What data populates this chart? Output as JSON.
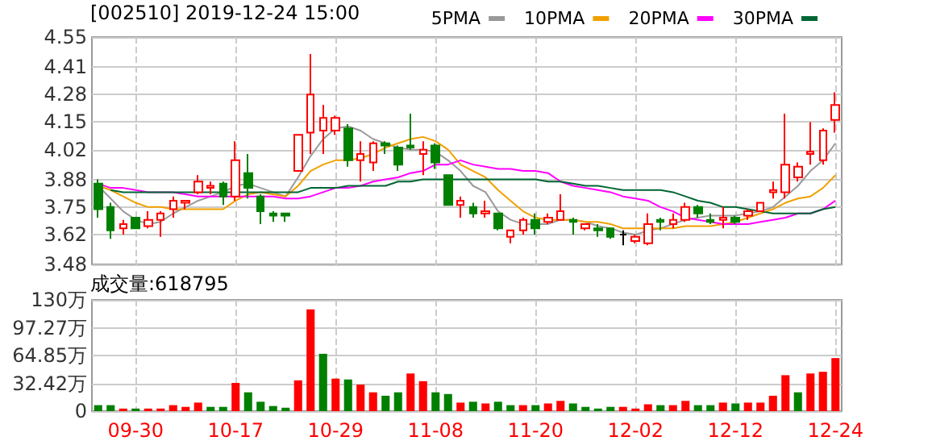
{
  "chart_data": [
    {
      "type": "candlestick",
      "title": "[002510] 2019-12-24 15:00",
      "categories": [
        null,
        null,
        null,
        null,
        null,
        null,
        null,
        null,
        null,
        null,
        null,
        null,
        null,
        null,
        null,
        null,
        null,
        null,
        null,
        null,
        null,
        null,
        null,
        null,
        null,
        null,
        null,
        null,
        null,
        null,
        null,
        null,
        null,
        null,
        null,
        null,
        null,
        null,
        null,
        null,
        null,
        null,
        null,
        null,
        null,
        null,
        null,
        null,
        null,
        null,
        null,
        null,
        null,
        null,
        null,
        null,
        null,
        null,
        null,
        null
      ],
      "series": [
        {
          "type": "candlestick",
          "ohlc": [
            [
              3.86,
              3.88,
              3.7,
              3.74
            ],
            [
              3.75,
              3.77,
              3.6,
              3.64
            ],
            [
              3.65,
              3.69,
              3.62,
              3.67
            ],
            [
              3.7,
              3.7,
              3.65,
              3.65
            ],
            [
              3.66,
              3.73,
              3.65,
              3.69
            ],
            [
              3.69,
              3.73,
              3.61,
              3.72
            ],
            [
              3.74,
              3.8,
              3.7,
              3.78
            ],
            [
              3.77,
              3.78,
              3.74,
              3.78
            ],
            [
              3.82,
              3.9,
              3.81,
              3.87
            ],
            [
              3.84,
              3.87,
              3.81,
              3.85
            ],
            [
              3.86,
              3.87,
              3.76,
              3.8
            ],
            [
              3.8,
              4.06,
              3.78,
              3.97
            ],
            [
              3.91,
              4.0,
              3.79,
              3.84
            ],
            [
              3.8,
              3.81,
              3.67,
              3.73
            ],
            [
              3.72,
              3.73,
              3.68,
              3.71
            ],
            [
              3.72,
              3.72,
              3.68,
              3.71
            ],
            [
              3.92,
              4.09,
              3.92,
              4.09
            ],
            [
              4.1,
              4.47,
              4.0,
              4.28
            ],
            [
              4.11,
              4.23,
              4.0,
              4.17
            ],
            [
              4.11,
              4.18,
              4.09,
              4.17
            ],
            [
              4.12,
              4.14,
              3.94,
              3.97
            ],
            [
              3.97,
              4.06,
              3.87,
              4.0
            ],
            [
              3.96,
              4.06,
              3.92,
              4.05
            ],
            [
              4.05,
              4.06,
              4.0,
              4.04
            ],
            [
              4.03,
              4.04,
              3.92,
              3.95
            ],
            [
              4.04,
              4.19,
              4.02,
              4.03
            ],
            [
              4.0,
              4.06,
              3.9,
              4.02
            ],
            [
              4.04,
              4.05,
              3.93,
              3.96
            ],
            [
              3.9,
              3.9,
              3.76,
              3.76
            ],
            [
              3.76,
              3.8,
              3.7,
              3.78
            ],
            [
              3.75,
              3.77,
              3.7,
              3.72
            ],
            [
              3.72,
              3.78,
              3.7,
              3.73
            ],
            [
              3.72,
              3.72,
              3.64,
              3.65
            ],
            [
              3.61,
              3.64,
              3.58,
              3.64
            ],
            [
              3.64,
              3.7,
              3.62,
              3.69
            ],
            [
              3.69,
              3.72,
              3.62,
              3.65
            ],
            [
              3.68,
              3.72,
              3.67,
              3.7
            ],
            [
              3.69,
              3.81,
              3.69,
              3.73
            ],
            [
              3.69,
              3.7,
              3.62,
              3.68
            ],
            [
              3.65,
              3.67,
              3.64,
              3.67
            ],
            [
              3.65,
              3.67,
              3.61,
              3.64
            ],
            [
              3.65,
              3.65,
              3.6,
              3.61
            ],
            [
              3.62,
              3.64,
              3.57,
              3.62
            ],
            [
              3.59,
              3.62,
              3.58,
              3.61
            ],
            [
              3.58,
              3.72,
              3.57,
              3.67
            ],
            [
              3.69,
              3.7,
              3.64,
              3.68
            ],
            [
              3.67,
              3.72,
              3.65,
              3.69
            ],
            [
              3.69,
              3.77,
              3.68,
              3.75
            ],
            [
              3.75,
              3.76,
              3.7,
              3.72
            ],
            [
              3.69,
              3.72,
              3.67,
              3.68
            ],
            [
              3.69,
              3.75,
              3.65,
              3.7
            ],
            [
              3.7,
              3.71,
              3.67,
              3.68
            ],
            [
              3.71,
              3.74,
              3.69,
              3.73
            ],
            [
              3.73,
              3.77,
              3.73,
              3.77
            ],
            [
              3.82,
              3.87,
              3.79,
              3.83
            ],
            [
              3.82,
              4.19,
              3.79,
              3.95
            ],
            [
              3.89,
              3.96,
              3.87,
              3.94
            ],
            [
              4.0,
              4.15,
              3.95,
              4.01
            ],
            [
              3.97,
              4.12,
              3.95,
              4.11
            ],
            [
              4.16,
              4.29,
              4.1,
              4.23
            ]
          ],
          "colors": [
            "#008000",
            "#008000",
            "#ff0000",
            "#008000",
            "#ff0000",
            "#ff0000",
            "#ff0000",
            "#ff0000",
            "#ff0000",
            "#ff0000",
            "#008000",
            "#ff0000",
            "#008000",
            "#008000",
            "#008000",
            "#008000",
            "#ff0000",
            "#ff0000",
            "#ff0000",
            "#ff0000",
            "#008000",
            "#ff0000",
            "#ff0000",
            "#008000",
            "#008000",
            "#008000",
            "#ff0000",
            "#008000",
            "#008000",
            "#ff0000",
            "#008000",
            "#ff0000",
            "#008000",
            "#ff0000",
            "#ff0000",
            "#008000",
            "#ff0000",
            "#ff0000",
            "#008000",
            "#ff0000",
            "#008000",
            "#008000",
            "#000000",
            "#ff0000",
            "#ff0000",
            "#008000",
            "#ff0000",
            "#ff0000",
            "#008000",
            "#008000",
            "#ff0000",
            "#008000",
            "#ff0000",
            "#ff0000",
            "#ff0000",
            "#ff0000",
            "#ff0000",
            "#ff0000",
            "#ff0000",
            "#ff0000"
          ]
        },
        {
          "type": "line",
          "name": "5PMA",
          "color": "#999999",
          "values": [
            3.85,
            3.79,
            3.73,
            3.69,
            3.67,
            3.68,
            3.72,
            3.75,
            3.78,
            3.8,
            3.82,
            3.85,
            3.86,
            3.84,
            3.82,
            3.8,
            3.89,
            3.99,
            4.07,
            4.12,
            4.13,
            4.11,
            4.07,
            4.05,
            4.03,
            4.02,
            4.02,
            4.01,
            3.97,
            3.92,
            3.85,
            3.82,
            3.73,
            3.69,
            3.67,
            3.67,
            3.67,
            3.69,
            3.69,
            3.68,
            3.66,
            3.65,
            3.63,
            3.62,
            3.64,
            3.65,
            3.67,
            3.69,
            3.7,
            3.71,
            3.71,
            3.71,
            3.72,
            3.73,
            3.75,
            3.8,
            3.85,
            3.92,
            3.97,
            4.05
          ]
        },
        {
          "type": "line",
          "name": "10PMA",
          "color": "#f0a000",
          "values": [
            3.85,
            3.83,
            3.8,
            3.77,
            3.75,
            3.75,
            3.74,
            3.74,
            3.74,
            3.74,
            3.74,
            3.78,
            3.81,
            3.82,
            3.81,
            3.8,
            3.85,
            3.92,
            3.95,
            3.97,
            3.97,
            3.98,
            4.0,
            4.03,
            4.05,
            4.07,
            4.08,
            4.06,
            4.02,
            3.95,
            3.92,
            3.89,
            3.83,
            3.78,
            3.73,
            3.7,
            3.69,
            3.69,
            3.69,
            3.68,
            3.68,
            3.67,
            3.65,
            3.65,
            3.65,
            3.65,
            3.65,
            3.66,
            3.66,
            3.66,
            3.67,
            3.68,
            3.7,
            3.72,
            3.74,
            3.77,
            3.79,
            3.8,
            3.84,
            3.9
          ]
        },
        {
          "type": "line",
          "name": "20PMA",
          "color": "#ff00ff",
          "values": [
            3.86,
            3.84,
            3.84,
            3.83,
            3.82,
            3.82,
            3.82,
            3.81,
            3.8,
            3.8,
            3.8,
            3.8,
            3.8,
            3.8,
            3.8,
            3.79,
            3.79,
            3.8,
            3.82,
            3.84,
            3.84,
            3.85,
            3.87,
            3.88,
            3.89,
            3.91,
            3.92,
            3.95,
            3.95,
            3.97,
            3.95,
            3.94,
            3.93,
            3.93,
            3.92,
            3.92,
            3.91,
            3.87,
            3.85,
            3.84,
            3.83,
            3.82,
            3.8,
            3.79,
            3.78,
            3.75,
            3.73,
            3.7,
            3.69,
            3.68,
            3.67,
            3.67,
            3.67,
            3.68,
            3.69,
            3.7,
            3.72,
            3.72,
            3.74,
            3.78
          ]
        },
        {
          "type": "line",
          "name": "30PMA",
          "color": "#006633",
          "values": [
            null,
            3.83,
            3.82,
            3.82,
            3.82,
            3.82,
            3.82,
            3.82,
            3.82,
            3.82,
            3.82,
            3.82,
            3.82,
            3.82,
            3.82,
            3.82,
            3.82,
            3.84,
            3.84,
            3.84,
            3.85,
            3.85,
            3.85,
            3.85,
            3.87,
            3.87,
            3.88,
            3.88,
            3.88,
            3.88,
            3.88,
            3.88,
            3.88,
            3.88,
            3.88,
            3.88,
            3.87,
            3.87,
            3.86,
            3.85,
            3.85,
            3.84,
            3.83,
            3.83,
            3.83,
            3.83,
            3.82,
            3.8,
            3.78,
            3.77,
            3.75,
            3.75,
            3.74,
            3.73,
            3.72,
            3.72,
            3.72,
            3.72,
            3.74,
            3.75
          ]
        }
      ],
      "ylim": [
        3.48,
        4.55
      ],
      "yticks": [
        3.48,
        3.62,
        3.75,
        3.88,
        4.02,
        4.15,
        4.28,
        4.41,
        4.55
      ],
      "grid": true,
      "legend": "top right",
      "marker": "none",
      "tick_labels": "y"
    },
    {
      "type": "bar",
      "title": "成交量:618795",
      "categories": [
        null,
        null,
        null,
        "09-30",
        null,
        null,
        null,
        null,
        null,
        null,
        null,
        "10-17",
        null,
        null,
        null,
        null,
        null,
        null,
        null,
        "10-29",
        null,
        null,
        null,
        null,
        null,
        null,
        null,
        "11-08",
        null,
        null,
        null,
        null,
        null,
        null,
        null,
        "11-20",
        null,
        null,
        null,
        null,
        null,
        null,
        null,
        "12-02",
        null,
        null,
        null,
        null,
        null,
        null,
        null,
        "12-12",
        null,
        null,
        null,
        null,
        null,
        null,
        null,
        "12-24"
      ],
      "values": [
        7,
        7,
        3,
        3,
        3,
        3,
        7,
        5,
        10,
        5,
        5,
        33,
        22,
        11,
        6,
        4,
        36,
        119,
        67,
        38,
        37,
        31,
        22,
        18,
        22,
        44,
        35,
        22,
        20,
        10,
        11,
        9,
        11,
        7,
        7,
        7,
        9,
        12,
        9,
        5,
        3,
        5,
        5,
        3,
        8,
        7,
        7,
        12,
        7,
        7,
        10,
        9,
        10,
        10,
        18,
        42,
        22,
        44,
        46,
        62
      ],
      "colors": [
        "#008000",
        "#008000",
        "#ff0000",
        "#008000",
        "#ff0000",
        "#ff0000",
        "#ff0000",
        "#ff0000",
        "#ff0000",
        "#008000",
        "#008000",
        "#ff0000",
        "#008000",
        "#008000",
        "#008000",
        "#008000",
        "#ff0000",
        "#ff0000",
        "#008000",
        "#ff0000",
        "#008000",
        "#ff0000",
        "#ff0000",
        "#008000",
        "#008000",
        "#ff0000",
        "#ff0000",
        "#008000",
        "#008000",
        "#ff0000",
        "#008000",
        "#ff0000",
        "#008000",
        "#008000",
        "#ff0000",
        "#008000",
        "#ff0000",
        "#ff0000",
        "#008000",
        "#008000",
        "#008000",
        "#008000",
        "#ff0000",
        "#ff0000",
        "#ff0000",
        "#008000",
        "#ff0000",
        "#ff0000",
        "#008000",
        "#008000",
        "#ff0000",
        "#008000",
        "#ff0000",
        "#ff0000",
        "#ff0000",
        "#ff0000",
        "#008000",
        "#ff0000",
        "#ff0000",
        "#ff0000"
      ],
      "ylim": [
        0,
        130
      ],
      "yticks": [
        0,
        {
          "value": 32.42,
          "label": "32.42万"
        },
        {
          "value": 64.85,
          "label": "64.85万"
        },
        {
          "value": 97.27,
          "label": "97.27万"
        },
        {
          "value": 130,
          "label": "130万"
        }
      ],
      "grid": true
    }
  ]
}
